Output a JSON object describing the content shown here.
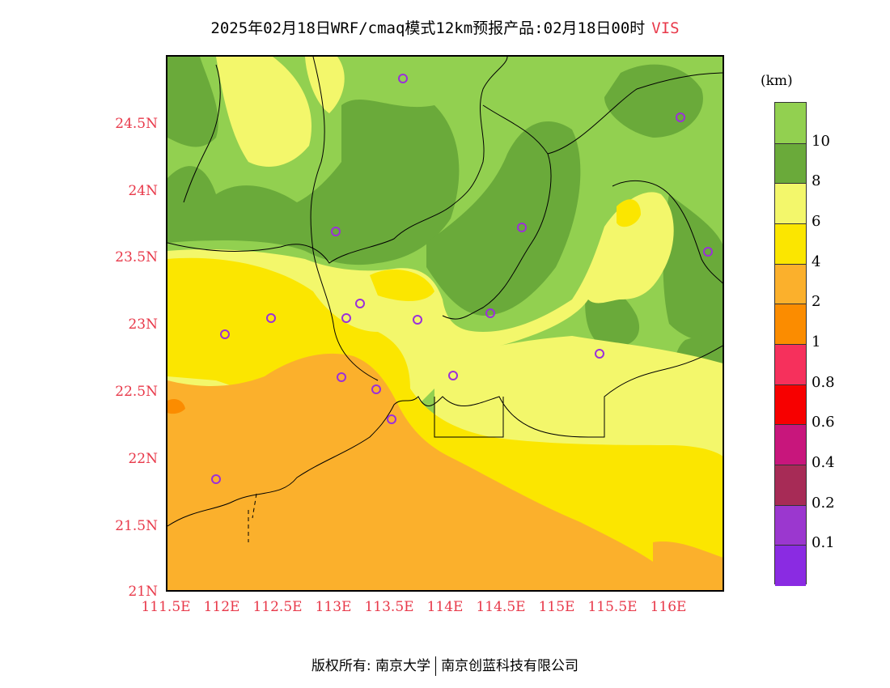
{
  "title": {
    "main": "2025年02月18日WRF/cmaq模式12km预报产品:02月18日00时",
    "variable": "VIS"
  },
  "map": {
    "lat_labels": [
      "24.5N",
      "24N",
      "23.5N",
      "23N",
      "22.5N",
      "22N",
      "21.5N",
      "21N"
    ],
    "lon_labels": [
      "111.5E",
      "112E",
      "112.5E",
      "113E",
      "113.5E",
      "114E",
      "114.5E",
      "115E",
      "115.5E",
      "116E"
    ],
    "station_count": 16,
    "colors": {
      "gt10": "#92d050",
      "8to10": "#6aaa3a",
      "6to8": "#f3f76b",
      "4to6": "#fbe600",
      "2to4": "#fbb02c",
      "1to2": "#fb8c00",
      "station_marker": "#9b30d9"
    }
  },
  "legend": {
    "unit": "(km)",
    "labels": [
      "10",
      "8",
      "6",
      "4",
      "2",
      "1",
      "0.8",
      "0.6",
      "0.4",
      "0.2",
      "0.1"
    ],
    "colors": [
      "#92d050",
      "#6aaa3a",
      "#f3f76b",
      "#fbe600",
      "#fbb02c",
      "#fb8c00",
      "#f6305c",
      "#f70000",
      "#c8167c",
      "#a72b56",
      "#9b37cf",
      "#8a2be2"
    ]
  },
  "footer": {
    "left": "版权所有: 南京大学",
    "right": "南京创蓝科技有限公司"
  }
}
